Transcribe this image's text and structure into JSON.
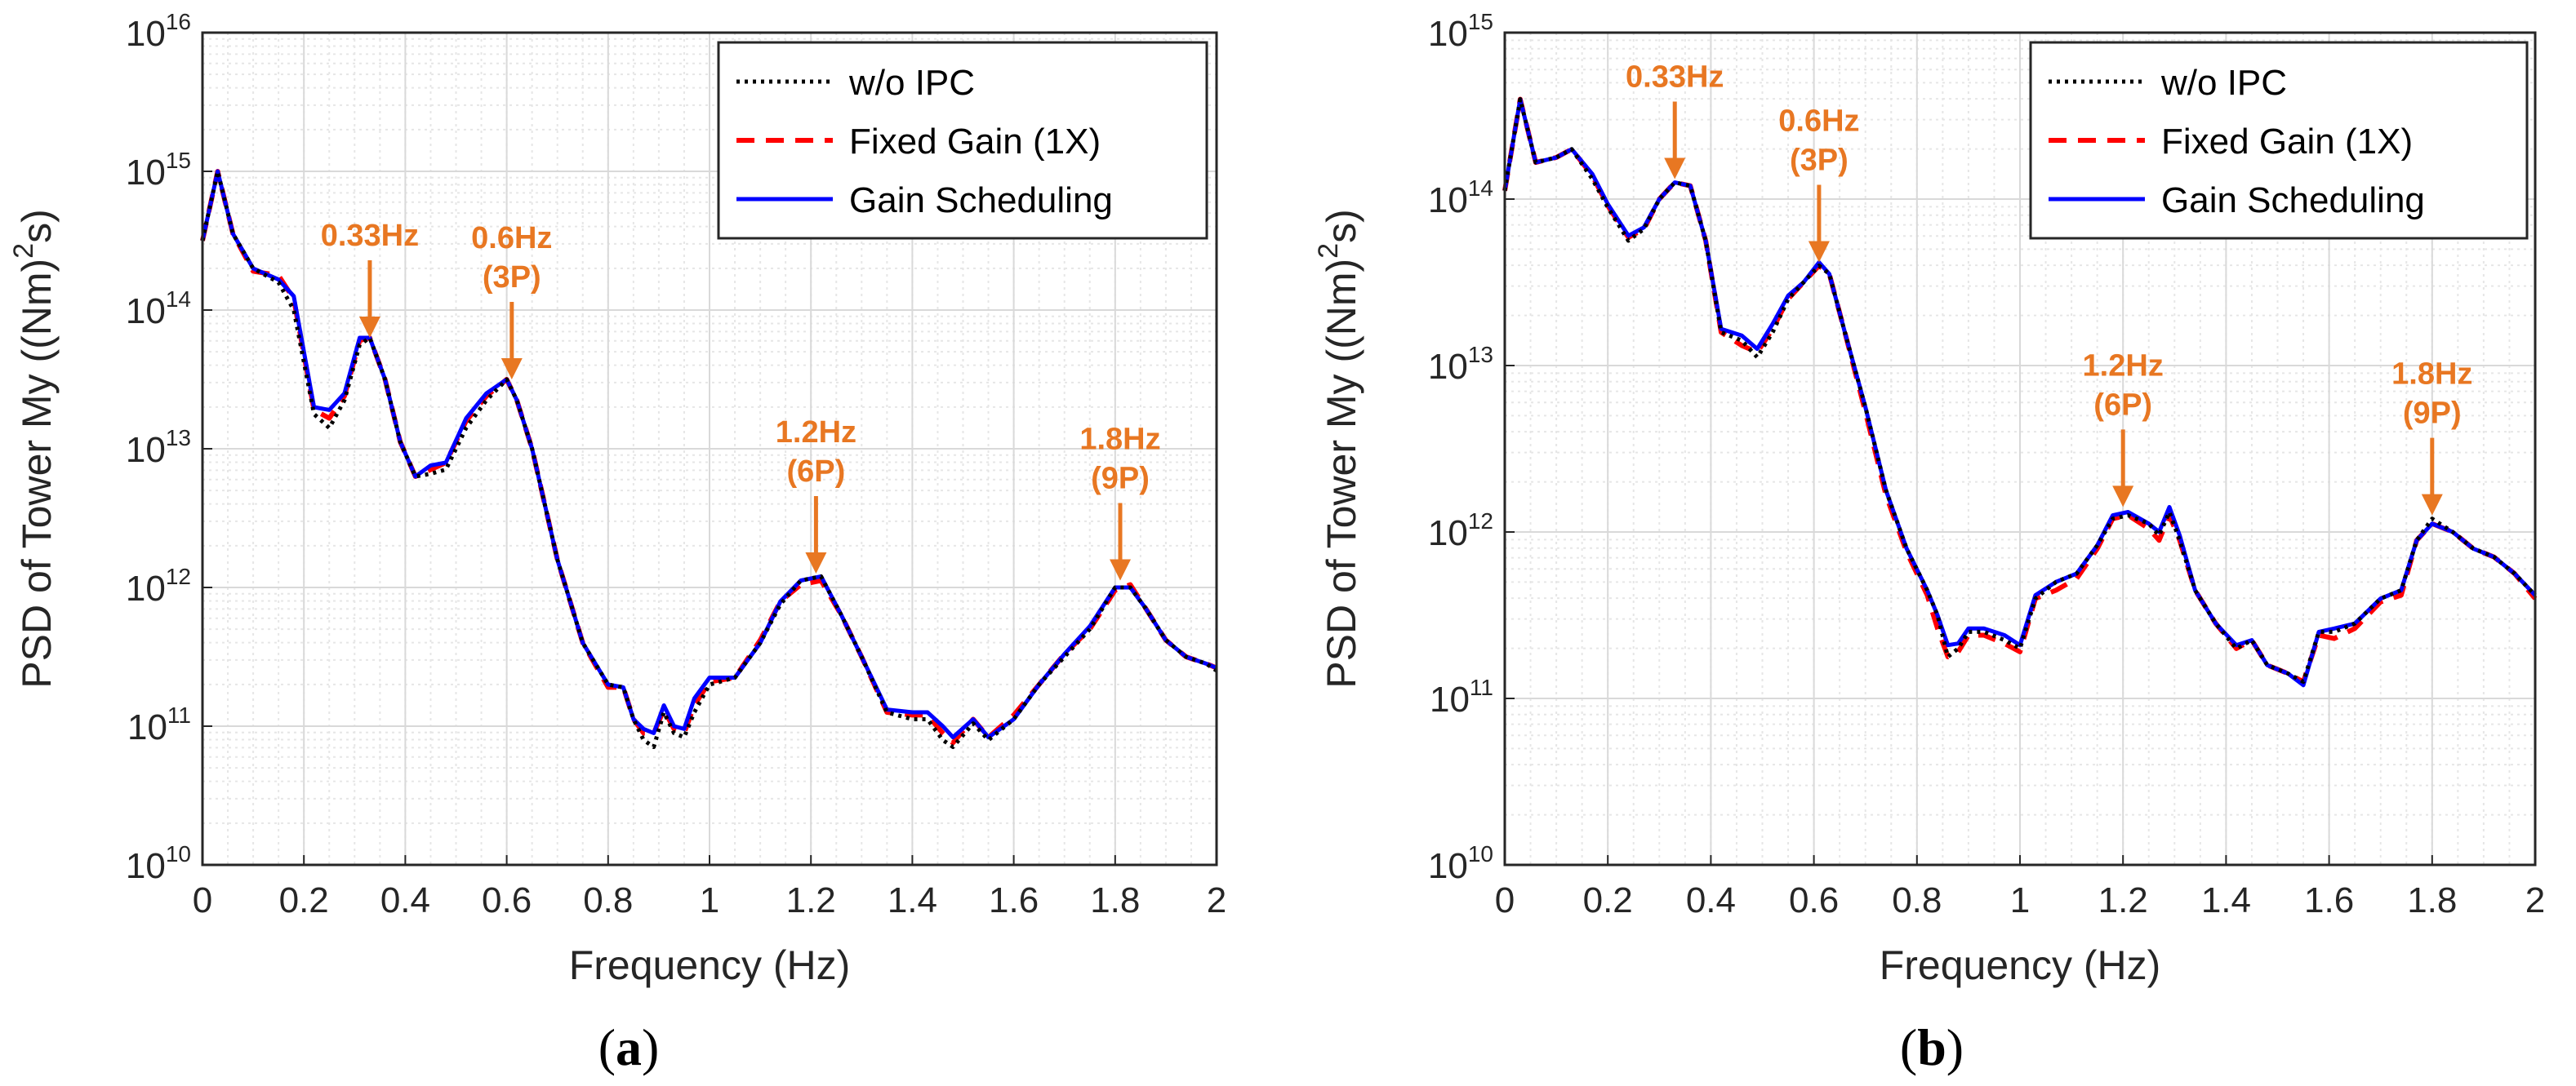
{
  "colors": {
    "wo_ipc": "#000000",
    "fixed_gain": "#ff0000",
    "gain_scheduling": "#0000ff",
    "annotation": "#e87722",
    "grid": "#d9d9d9",
    "axis": "#262626"
  },
  "chart_data": [
    {
      "type": "line",
      "panel_label": "a",
      "ylabel": "PSD of Tower My ((Nm)^2s)",
      "ylabel_parts": {
        "pre": "PSD of Tower My ((Nm)",
        "sup": "2",
        "post": "s)"
      },
      "xlabel": "Frequency (Hz)",
      "xlim": [
        0,
        2
      ],
      "ylim_log10": [
        10,
        16
      ],
      "yscale": "log",
      "x_ticks": [
        "0",
        "0.2",
        "0.4",
        "0.6",
        "0.8",
        "1",
        "1.2",
        "1.4",
        "1.6",
        "1.8",
        "2"
      ],
      "y_ticks": [
        {
          "base": "10",
          "exp": "10"
        },
        {
          "base": "10",
          "exp": "11"
        },
        {
          "base": "10",
          "exp": "12"
        },
        {
          "base": "10",
          "exp": "13"
        },
        {
          "base": "10",
          "exp": "14"
        },
        {
          "base": "10",
          "exp": "15"
        },
        {
          "base": "10",
          "exp": "16"
        }
      ],
      "legend": [
        "w/o IPC",
        "Fixed Gain (1X)",
        "Gain Scheduling"
      ],
      "legend_position": "top-right",
      "grid": true,
      "annotations": [
        {
          "lines": [
            "0.33Hz"
          ],
          "x": 0.33,
          "y_log10": 13.8
        },
        {
          "lines": [
            "0.6Hz",
            "(3P)"
          ],
          "x": 0.61,
          "y_log10": 13.5
        },
        {
          "lines": [
            "1.2Hz",
            "(6P)"
          ],
          "x": 1.21,
          "y_log10": 12.1
        },
        {
          "lines": [
            "1.8Hz",
            "(9P)"
          ],
          "x": 1.81,
          "y_log10": 12.05
        }
      ],
      "x": [
        0,
        0.03,
        0.06,
        0.1,
        0.15,
        0.18,
        0.22,
        0.25,
        0.28,
        0.31,
        0.33,
        0.36,
        0.39,
        0.42,
        0.45,
        0.48,
        0.52,
        0.56,
        0.6,
        0.62,
        0.65,
        0.7,
        0.75,
        0.8,
        0.83,
        0.85,
        0.87,
        0.89,
        0.91,
        0.93,
        0.95,
        0.97,
        1.0,
        1.05,
        1.1,
        1.14,
        1.18,
        1.22,
        1.26,
        1.3,
        1.35,
        1.4,
        1.43,
        1.46,
        1.48,
        1.52,
        1.55,
        1.6,
        1.65,
        1.7,
        1.75,
        1.8,
        1.83,
        1.86,
        1.9,
        1.94,
        1.98,
        2.0
      ],
      "series": [
        {
          "name": "w/o IPC",
          "log10_values": [
            14.5,
            15.0,
            14.55,
            14.3,
            14.2,
            14.0,
            13.25,
            13.15,
            13.35,
            13.75,
            13.8,
            13.5,
            13.05,
            12.8,
            12.82,
            12.85,
            13.15,
            13.35,
            13.5,
            13.35,
            13.0,
            12.2,
            11.6,
            11.3,
            11.28,
            11.05,
            10.9,
            10.85,
            11.1,
            10.95,
            10.92,
            11.1,
            11.3,
            11.35,
            11.6,
            11.88,
            12.05,
            12.08,
            11.8,
            11.5,
            11.1,
            11.05,
            11.05,
            10.9,
            10.85,
            11.02,
            10.9,
            11.05,
            11.3,
            11.5,
            11.7,
            12.0,
            12.0,
            11.85,
            11.62,
            11.5,
            11.45,
            11.4
          ]
        },
        {
          "name": "Fixed Gain (1X)",
          "log10_values": [
            14.5,
            15.0,
            14.55,
            14.28,
            14.25,
            14.08,
            13.28,
            13.22,
            13.38,
            13.78,
            13.8,
            13.5,
            13.05,
            12.8,
            12.85,
            12.9,
            13.2,
            13.38,
            13.5,
            13.35,
            13.0,
            12.2,
            11.6,
            11.28,
            11.28,
            11.05,
            10.95,
            10.95,
            11.12,
            10.98,
            10.95,
            11.15,
            11.32,
            11.35,
            11.62,
            11.9,
            12.02,
            12.05,
            11.8,
            11.5,
            11.1,
            11.08,
            11.08,
            10.95,
            10.88,
            11.05,
            10.92,
            11.08,
            11.3,
            11.52,
            11.7,
            11.98,
            12.02,
            11.85,
            11.62,
            11.5,
            11.45,
            11.42
          ]
        },
        {
          "name": "Gain Scheduling",
          "log10_values": [
            14.5,
            15.0,
            14.55,
            14.3,
            14.22,
            14.1,
            13.3,
            13.28,
            13.4,
            13.8,
            13.8,
            13.5,
            13.05,
            12.8,
            12.88,
            12.9,
            13.22,
            13.4,
            13.5,
            13.35,
            13.0,
            12.2,
            11.6,
            11.3,
            11.28,
            11.05,
            10.98,
            10.95,
            11.15,
            11.0,
            10.98,
            11.2,
            11.35,
            11.35,
            11.6,
            11.9,
            12.05,
            12.08,
            11.8,
            11.5,
            11.12,
            11.1,
            11.1,
            11.0,
            10.92,
            11.05,
            10.92,
            11.05,
            11.3,
            11.52,
            11.72,
            12.0,
            12.0,
            11.85,
            11.62,
            11.5,
            11.45,
            11.42
          ]
        }
      ]
    },
    {
      "type": "line",
      "panel_label": "b",
      "ylabel": "PSD of Tower My ((Nm)^2s)",
      "ylabel_parts": {
        "pre": "PSD of Tower My ((Nm)",
        "sup": "2",
        "post": "s)"
      },
      "xlabel": "Frequency (Hz)",
      "xlim": [
        0,
        2
      ],
      "ylim_log10": [
        10,
        15
      ],
      "yscale": "log",
      "x_ticks": [
        "0",
        "0.2",
        "0.4",
        "0.6",
        "0.8",
        "1",
        "1.2",
        "1.4",
        "1.6",
        "1.8",
        "2"
      ],
      "y_ticks": [
        {
          "base": "10",
          "exp": "10"
        },
        {
          "base": "10",
          "exp": "11"
        },
        {
          "base": "10",
          "exp": "12"
        },
        {
          "base": "10",
          "exp": "13"
        },
        {
          "base": "10",
          "exp": "14"
        },
        {
          "base": "10",
          "exp": "15"
        }
      ],
      "legend": [
        "w/o IPC",
        "Fixed Gain (1X)",
        "Gain Scheduling"
      ],
      "legend_position": "top-right",
      "grid": true,
      "annotations": [
        {
          "lines": [
            "0.33Hz"
          ],
          "x": 0.33,
          "y_log10": 14.12
        },
        {
          "lines": [
            "0.6Hz",
            "(3P)"
          ],
          "x": 0.61,
          "y_log10": 13.62
        },
        {
          "lines": [
            "1.2Hz",
            "(6P)"
          ],
          "x": 1.2,
          "y_log10": 12.15
        },
        {
          "lines": [
            "1.8Hz",
            "(9P)"
          ],
          "x": 1.8,
          "y_log10": 12.1
        }
      ],
      "x": [
        0,
        0.03,
        0.06,
        0.1,
        0.13,
        0.17,
        0.2,
        0.24,
        0.27,
        0.3,
        0.33,
        0.36,
        0.39,
        0.42,
        0.46,
        0.49,
        0.52,
        0.55,
        0.58,
        0.61,
        0.63,
        0.66,
        0.7,
        0.74,
        0.78,
        0.82,
        0.84,
        0.86,
        0.88,
        0.9,
        0.93,
        0.97,
        1.0,
        1.03,
        1.07,
        1.11,
        1.15,
        1.18,
        1.21,
        1.25,
        1.27,
        1.29,
        1.31,
        1.34,
        1.38,
        1.42,
        1.45,
        1.48,
        1.52,
        1.55,
        1.58,
        1.61,
        1.65,
        1.7,
        1.74,
        1.77,
        1.8,
        1.84,
        1.88,
        1.92,
        1.96,
        2.0
      ],
      "series": [
        {
          "name": "w/o IPC",
          "log10_values": [
            14.05,
            14.6,
            14.22,
            14.25,
            14.3,
            14.12,
            13.95,
            13.75,
            13.82,
            14.0,
            14.1,
            14.08,
            13.75,
            13.2,
            13.15,
            13.05,
            13.2,
            13.4,
            13.5,
            13.6,
            13.55,
            13.2,
            12.75,
            12.25,
            11.9,
            11.65,
            11.5,
            11.25,
            11.3,
            11.4,
            11.4,
            11.35,
            11.3,
            11.6,
            11.7,
            11.75,
            11.92,
            12.08,
            12.1,
            12.05,
            11.98,
            12.12,
            11.95,
            11.65,
            11.45,
            11.3,
            11.35,
            11.2,
            11.15,
            11.1,
            11.4,
            11.4,
            11.45,
            11.6,
            11.65,
            11.95,
            12.08,
            12.0,
            11.9,
            11.85,
            11.75,
            11.62
          ]
        },
        {
          "name": "Fixed Gain (1X)",
          "log10_values": [
            14.05,
            14.6,
            14.22,
            14.25,
            14.3,
            14.14,
            13.96,
            13.77,
            13.82,
            14.0,
            14.1,
            14.08,
            13.75,
            13.2,
            13.12,
            13.08,
            13.22,
            13.4,
            13.5,
            13.6,
            13.55,
            13.2,
            12.72,
            12.22,
            11.88,
            11.62,
            11.42,
            11.25,
            11.28,
            11.38,
            11.38,
            11.33,
            11.28,
            11.6,
            11.65,
            11.72,
            11.9,
            12.08,
            12.1,
            12.02,
            11.95,
            12.1,
            11.95,
            11.65,
            11.45,
            11.3,
            11.35,
            11.2,
            11.15,
            11.1,
            11.38,
            11.36,
            11.42,
            11.58,
            11.62,
            11.95,
            12.05,
            12.0,
            11.9,
            11.85,
            11.75,
            11.6
          ]
        },
        {
          "name": "Gain Scheduling",
          "log10_values": [
            14.05,
            14.6,
            14.22,
            14.25,
            14.3,
            14.15,
            13.97,
            13.78,
            13.83,
            14.0,
            14.1,
            14.08,
            13.75,
            13.22,
            13.18,
            13.1,
            13.25,
            13.42,
            13.5,
            13.62,
            13.55,
            13.2,
            12.75,
            12.25,
            11.9,
            11.65,
            11.5,
            11.32,
            11.33,
            11.42,
            11.42,
            11.38,
            11.32,
            11.62,
            11.7,
            11.75,
            11.92,
            12.1,
            12.12,
            12.05,
            12.0,
            12.15,
            11.98,
            11.65,
            11.45,
            11.32,
            11.35,
            11.2,
            11.15,
            11.08,
            11.4,
            11.42,
            11.45,
            11.6,
            11.65,
            11.95,
            12.05,
            12.0,
            11.9,
            11.85,
            11.75,
            11.62
          ]
        }
      ]
    }
  ]
}
